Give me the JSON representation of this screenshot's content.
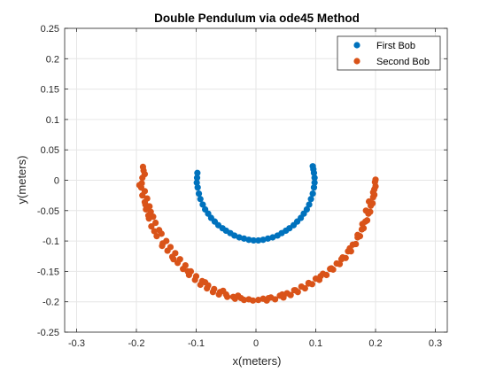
{
  "chart_data": {
    "type": "scatter",
    "title": "Double Pendulum via ode45 Method",
    "xlabel": "x(meters)",
    "ylabel": "y(meters)",
    "xlim": [
      -0.32,
      0.32
    ],
    "ylim": [
      -0.25,
      0.25
    ],
    "xticks": [
      -0.3,
      -0.2,
      -0.1,
      0,
      0.1,
      0.2,
      0.3
    ],
    "xtick_labels": [
      "-0.3",
      "-0.2",
      "-0.1",
      "0",
      "0.1",
      "0.2",
      "0.3"
    ],
    "yticks": [
      0.25,
      0.2,
      0.15,
      0.1,
      0.05,
      0,
      -0.05,
      -0.1,
      -0.15,
      -0.2,
      -0.25
    ],
    "ytick_labels": [
      "0.25",
      "0.2",
      "0.15",
      "0.1",
      "0.05",
      "0",
      "-0.05",
      "-0.1",
      "-0.15",
      "-0.2",
      "-0.25"
    ],
    "grid": true,
    "legend_position": "top-right",
    "series": [
      {
        "name": "First Bob",
        "color": "#0072BD",
        "points": [
          [
            -0.098,
            0.012
          ],
          [
            -0.0985,
            0.004
          ],
          [
            -0.099,
            -0.004
          ],
          [
            -0.0975,
            -0.012
          ],
          [
            -0.0955,
            -0.022
          ],
          [
            -0.093,
            -0.031
          ],
          [
            -0.089,
            -0.04
          ],
          [
            -0.085,
            -0.048
          ],
          [
            -0.08,
            -0.055
          ],
          [
            -0.075,
            -0.062
          ],
          [
            -0.069,
            -0.068
          ],
          [
            -0.063,
            -0.074
          ],
          [
            -0.056,
            -0.079
          ],
          [
            -0.05,
            -0.083
          ],
          [
            -0.043,
            -0.087
          ],
          [
            -0.036,
            -0.091
          ],
          [
            -0.028,
            -0.094
          ],
          [
            -0.02,
            -0.096
          ],
          [
            -0.012,
            -0.098
          ],
          [
            -0.004,
            -0.099
          ],
          [
            0.004,
            -0.099
          ],
          [
            0.012,
            -0.098
          ],
          [
            0.02,
            -0.096
          ],
          [
            0.028,
            -0.094
          ],
          [
            0.036,
            -0.091
          ],
          [
            0.043,
            -0.087
          ],
          [
            0.05,
            -0.083
          ],
          [
            0.056,
            -0.079
          ],
          [
            0.063,
            -0.074
          ],
          [
            0.069,
            -0.068
          ],
          [
            0.075,
            -0.062
          ],
          [
            0.08,
            -0.055
          ],
          [
            0.085,
            -0.048
          ],
          [
            0.089,
            -0.04
          ],
          [
            0.092,
            -0.031
          ],
          [
            0.095,
            -0.022
          ],
          [
            0.097,
            -0.012
          ],
          [
            0.098,
            -0.004
          ],
          [
            0.098,
            0.004
          ],
          [
            0.097,
            0.012
          ],
          [
            0.096,
            0.018
          ],
          [
            0.095,
            0.023
          ]
        ]
      },
      {
        "name": "Second Bob",
        "color": "#D95319",
        "points": [
          [
            -0.189,
            0.022
          ],
          [
            -0.188,
            0.016
          ],
          [
            -0.186,
            0.01
          ],
          [
            -0.195,
            -0.008
          ],
          [
            -0.192,
            -0.012
          ],
          [
            -0.186,
            -0.018
          ],
          [
            -0.19,
            -0.025
          ],
          [
            -0.182,
            -0.03
          ],
          [
            -0.186,
            -0.036
          ],
          [
            -0.178,
            -0.043
          ],
          [
            -0.184,
            -0.048
          ],
          [
            -0.176,
            -0.052
          ],
          [
            -0.172,
            -0.06
          ],
          [
            -0.179,
            -0.063
          ],
          [
            -0.168,
            -0.07
          ],
          [
            -0.175,
            -0.076
          ],
          [
            -0.162,
            -0.082
          ],
          [
            -0.158,
            -0.088
          ],
          [
            -0.166,
            -0.092
          ],
          [
            -0.15,
            -0.1
          ],
          [
            -0.156,
            -0.104
          ],
          [
            -0.143,
            -0.11
          ],
          [
            -0.148,
            -0.116
          ],
          [
            -0.135,
            -0.12
          ],
          [
            -0.14,
            -0.126
          ],
          [
            -0.127,
            -0.13
          ],
          [
            -0.131,
            -0.136
          ],
          [
            -0.118,
            -0.14
          ],
          [
            -0.122,
            -0.146
          ],
          [
            -0.109,
            -0.15
          ],
          [
            -0.112,
            -0.156
          ],
          [
            -0.1,
            -0.158
          ],
          [
            -0.102,
            -0.164
          ],
          [
            -0.09,
            -0.166
          ],
          [
            -0.093,
            -0.172
          ],
          [
            -0.08,
            -0.173
          ],
          [
            -0.082,
            -0.178
          ],
          [
            -0.07,
            -0.179
          ],
          [
            -0.072,
            -0.184
          ],
          [
            -0.06,
            -0.184
          ],
          [
            -0.062,
            -0.188
          ],
          [
            -0.05,
            -0.188
          ],
          [
            -0.048,
            -0.192
          ],
          [
            -0.038,
            -0.192
          ],
          [
            -0.035,
            -0.195
          ],
          [
            -0.025,
            -0.194
          ],
          [
            -0.02,
            -0.197
          ],
          [
            -0.012,
            -0.196
          ],
          [
            -0.005,
            -0.198
          ],
          [
            0.004,
            -0.197
          ],
          [
            0.012,
            -0.195
          ],
          [
            0.018,
            -0.198
          ],
          [
            0.025,
            -0.193
          ],
          [
            0.032,
            -0.196
          ],
          [
            0.04,
            -0.19
          ],
          [
            0.046,
            -0.193
          ],
          [
            0.052,
            -0.186
          ],
          [
            0.058,
            -0.189
          ],
          [
            0.064,
            -0.181
          ],
          [
            0.07,
            -0.184
          ],
          [
            0.076,
            -0.175
          ],
          [
            0.082,
            -0.178
          ],
          [
            0.088,
            -0.169
          ],
          [
            0.094,
            -0.171
          ],
          [
            0.1,
            -0.162
          ],
          [
            0.106,
            -0.164
          ],
          [
            0.112,
            -0.154
          ],
          [
            0.118,
            -0.156
          ],
          [
            0.124,
            -0.146
          ],
          [
            0.129,
            -0.147
          ],
          [
            0.135,
            -0.137
          ],
          [
            0.14,
            -0.138
          ],
          [
            0.145,
            -0.127
          ],
          [
            0.15,
            -0.128
          ],
          [
            0.154,
            -0.117
          ],
          [
            0.159,
            -0.117
          ],
          [
            0.162,
            -0.106
          ],
          [
            0.167,
            -0.105
          ],
          [
            0.17,
            -0.094
          ],
          [
            0.174,
            -0.092
          ],
          [
            0.177,
            -0.081
          ],
          [
            0.18,
            -0.079
          ],
          [
            0.183,
            -0.068
          ],
          [
            0.186,
            -0.066
          ],
          [
            0.188,
            -0.055
          ],
          [
            0.191,
            -0.052
          ],
          [
            0.192,
            -0.042
          ],
          [
            0.195,
            -0.038
          ],
          [
            0.196,
            -0.028
          ],
          [
            0.198,
            -0.024
          ],
          [
            0.198,
            -0.015
          ],
          [
            0.2,
            -0.01
          ],
          [
            0.199,
            -0.003
          ],
          [
            0.2,
            0.001
          ],
          [
            0.196,
            -0.02
          ],
          [
            0.189,
            -0.035
          ],
          [
            0.184,
            -0.05
          ],
          [
            0.178,
            -0.072
          ],
          [
            0.17,
            -0.09
          ],
          [
            0.157,
            -0.112
          ],
          [
            0.143,
            -0.13
          ],
          [
            0.126,
            -0.145
          ],
          [
            0.108,
            -0.158
          ],
          [
            0.088,
            -0.17
          ],
          [
            0.066,
            -0.181
          ],
          [
            0.044,
            -0.188
          ],
          [
            0.021,
            -0.194
          ],
          [
            -0.03,
            -0.19
          ],
          [
            -0.055,
            -0.182
          ],
          [
            -0.085,
            -0.168
          ],
          [
            -0.114,
            -0.15
          ],
          [
            -0.138,
            -0.13
          ],
          [
            -0.157,
            -0.108
          ],
          [
            -0.17,
            -0.084
          ],
          [
            -0.18,
            -0.058
          ],
          [
            -0.185,
            -0.04
          ],
          [
            -0.191,
            -0.005
          ],
          [
            -0.19,
            0.004
          ]
        ]
      }
    ]
  }
}
